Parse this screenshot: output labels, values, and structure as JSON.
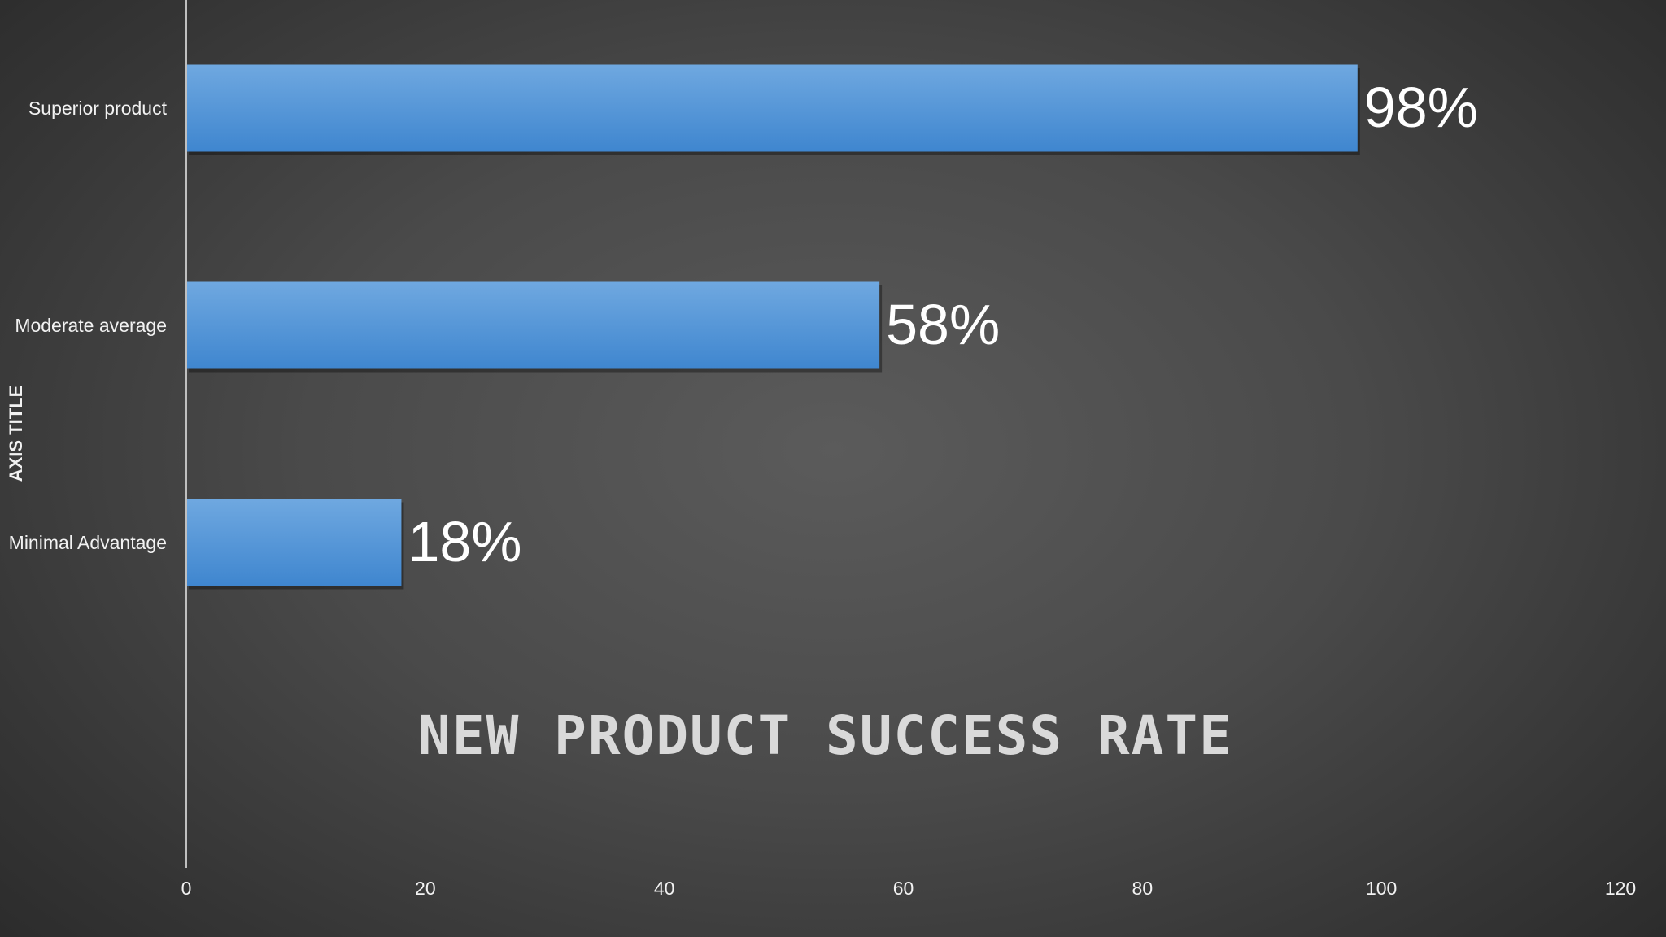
{
  "chart_data": {
    "type": "bar",
    "orientation": "horizontal",
    "title": "NEW PRODUCT SUCCESS RATE",
    "ylabel": "AXIS TITLE",
    "xlabel": "",
    "categories": [
      "Superior product",
      "Moderate average",
      "Minimal Advantage"
    ],
    "values": [
      98,
      58,
      18
    ],
    "data_labels": [
      "98%",
      "58%",
      "18%"
    ],
    "xlim": [
      0,
      120
    ],
    "x_ticks": [
      "0",
      "20",
      "40",
      "60",
      "80",
      "100",
      "120"
    ],
    "grid": false,
    "legend": "none",
    "bar_color": "#5b9bd5",
    "bar_color_light": "#6fa8e0",
    "bar_color_dark": "#3f86cf",
    "background_color": "#4a4a4a"
  }
}
